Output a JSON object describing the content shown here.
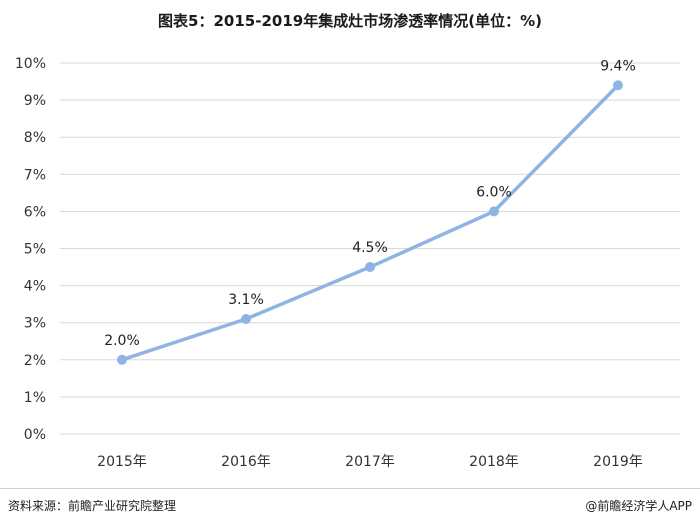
{
  "chart_data": {
    "type": "line",
    "title": "图表5：2015-2019年集成灶市场渗透率情况(单位：%)",
    "categories": [
      "2015年",
      "2016年",
      "2017年",
      "2018年",
      "2019年"
    ],
    "series": [
      {
        "values": [
          2.0,
          3.1,
          4.5,
          6.0,
          9.4
        ],
        "labels": [
          "2.0%",
          "3.1%",
          "4.5%",
          "6.0%",
          "9.4%"
        ]
      }
    ],
    "y_ticks": [
      "0%",
      "1%",
      "2%",
      "3%",
      "4%",
      "5%",
      "6%",
      "7%",
      "8%",
      "9%",
      "10%"
    ],
    "ylim": [
      0,
      10
    ],
    "grid": true,
    "line_color": "#8eb4e3"
  },
  "footer": {
    "source": "资料来源：前瞻产业研究院整理",
    "brand": "@前瞻经济学人APP"
  }
}
